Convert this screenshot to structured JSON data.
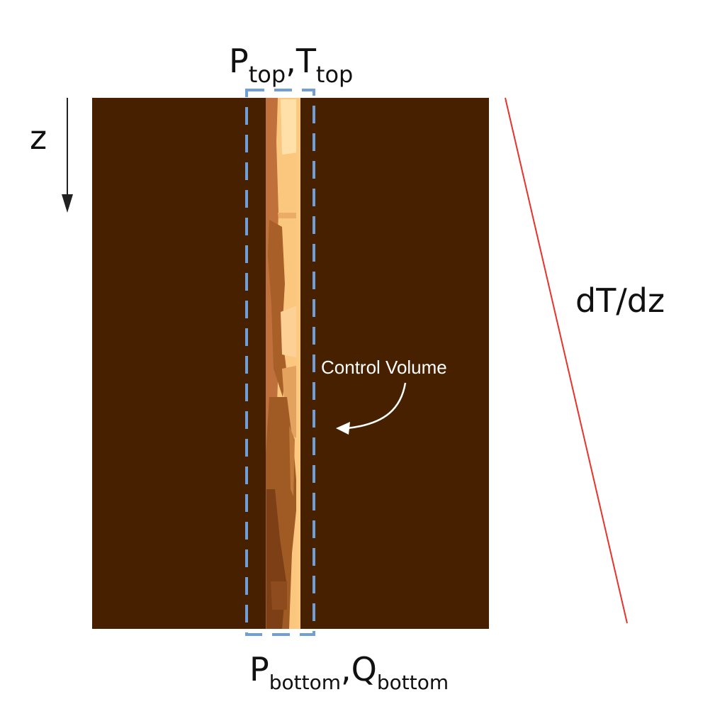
{
  "labels": {
    "top": {
      "p": "P",
      "p_sub": "top",
      "sep": ",",
      "t": "T",
      "t_sub": "top"
    },
    "bottom": {
      "p": "P",
      "p_sub": "bottom",
      "sep": ",",
      "q": "Q",
      "q_sub": "bottom"
    },
    "depth_axis": "z",
    "gradient": "dT/dz",
    "control_volume": "Control Volume"
  },
  "colors": {
    "rock": "#472000",
    "gradient_line": "#e8322a",
    "control_volume_box": "#6f9fd6",
    "arrow_dark": "#222222",
    "annotation": "#ffffff",
    "wellbore_light": "#fbc67e",
    "wellbore_mid": "#e3a35e",
    "wellbore_dark": "#a05a24"
  }
}
